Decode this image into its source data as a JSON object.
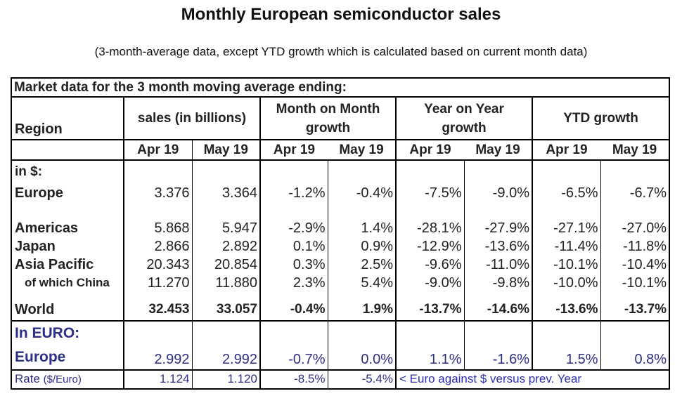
{
  "title": "Monthly European semiconductor sales",
  "subtitle": "(3-month-average data, except YTD growth which is calculated based on current month data)",
  "table": {
    "band_title": "Market data for the 3 month moving average ending:",
    "region_header": "Region",
    "groups": [
      {
        "label": "sales (in billions)"
      },
      {
        "label_line1": "Month on Month",
        "label_line2": "growth"
      },
      {
        "label_line1": "Year on Year",
        "label_line2": "growth"
      },
      {
        "label": "YTD growth"
      }
    ],
    "months": [
      "Apr 19",
      "May 19",
      "Apr 19",
      "May 19",
      "Apr 19",
      "May 19",
      "Apr 19",
      "May 19"
    ],
    "usd_section_label": "in $:",
    "rows": [
      {
        "region": "Europe",
        "values": [
          "3.376",
          "3.364",
          "-1.2%",
          "-0.4%",
          "-7.5%",
          "-9.0%",
          "-6.5%",
          "-6.7%"
        ]
      },
      {
        "region": "Americas",
        "values": [
          "5.868",
          "5.947",
          "-2.9%",
          "1.4%",
          "-28.1%",
          "-27.9%",
          "-27.1%",
          "-27.0%"
        ]
      },
      {
        "region": "Japan",
        "values": [
          "2.866",
          "2.892",
          "0.1%",
          "0.9%",
          "-12.9%",
          "-13.6%",
          "-11.4%",
          "-11.8%"
        ]
      },
      {
        "region": "Asia Pacific",
        "values": [
          "20.343",
          "20.854",
          "0.3%",
          "2.5%",
          "-9.6%",
          "-11.0%",
          "-10.1%",
          "-10.4%"
        ]
      },
      {
        "region": "of which China",
        "values": [
          "11.270",
          "11.880",
          "2.3%",
          "5.4%",
          "-9.0%",
          "-9.8%",
          "-10.0%",
          "-10.1%"
        ]
      },
      {
        "region": "World",
        "values": [
          "32.453",
          "33.057",
          "-0.4%",
          "1.9%",
          "-13.7%",
          "-14.6%",
          "-13.6%",
          "-13.7%"
        ]
      }
    ],
    "euro_section_label": "In EURO:",
    "euro_row": {
      "region": "Europe",
      "values": [
        "2.992",
        "2.992",
        "-0.7%",
        "0.0%",
        "1.1%",
        "-1.6%",
        "1.5%",
        "0.8%"
      ]
    },
    "rate_row": {
      "label": "Rate",
      "unit": "($/Euro)",
      "values": [
        "1.124",
        "1.120",
        "-8.5%",
        "-5.4%"
      ],
      "note": "< Euro against $ versus prev. Year"
    }
  },
  "colors": {
    "euro_text": "#2b2f86",
    "note_text": "#2b2fb0"
  }
}
